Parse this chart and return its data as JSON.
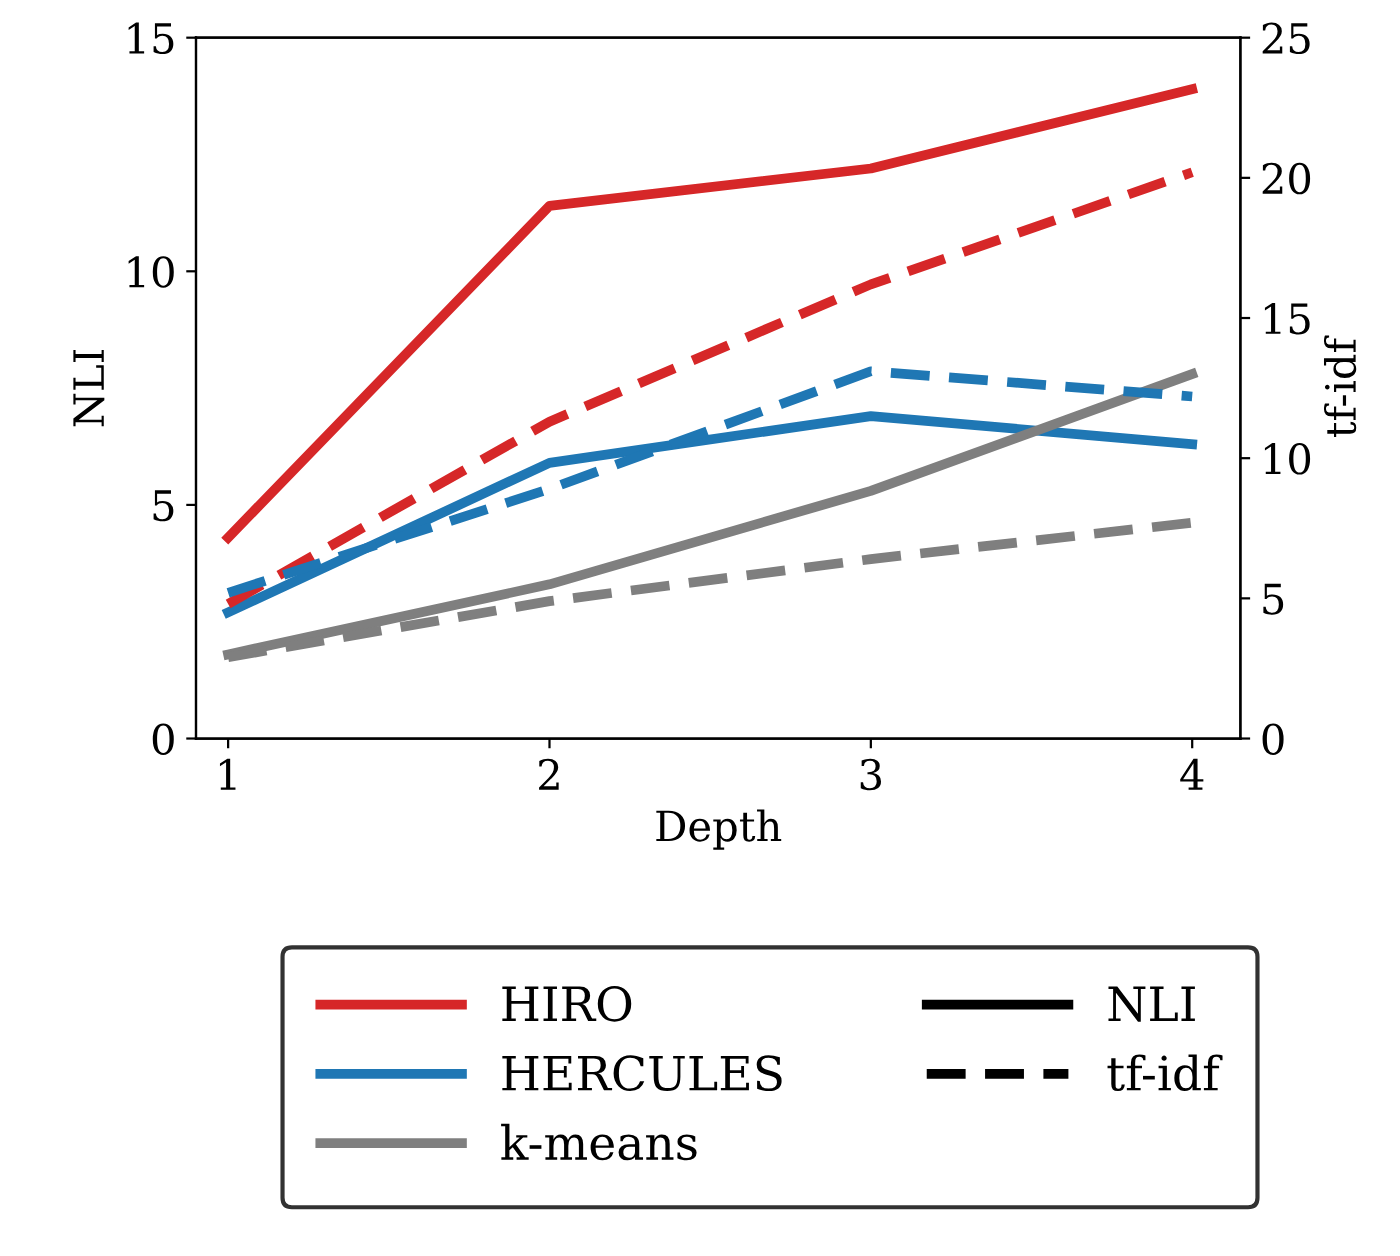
{
  "chart_data": {
    "type": "line",
    "xlabel": "Depth",
    "ylabel": "NLI",
    "y2label": "tf-idf",
    "x": [
      1,
      2,
      3,
      4
    ],
    "xlim": [
      0.9,
      4.15
    ],
    "xticks": [
      1,
      2,
      3,
      4
    ],
    "ylim": [
      0,
      15
    ],
    "yticks": [
      0,
      5,
      10,
      15
    ],
    "y2lim": [
      0,
      25
    ],
    "y2ticks": [
      0,
      5,
      10,
      15,
      20,
      25
    ],
    "grid": false,
    "legend": "bottom",
    "marker": "none",
    "series": [
      {
        "name": "HIRO",
        "color": "#d62728",
        "values": [
          4.3,
          11.4,
          12.2,
          13.9
        ],
        "line_style": "solid"
      },
      {
        "color": "#d62728",
        "values": [
          4.8,
          11.3,
          16.2,
          20.2
        ],
        "axis": "y2",
        "line_style": "dashed"
      },
      {
        "name": "HERCULES",
        "color": "#1f77b4",
        "values": [
          2.7,
          5.9,
          6.9,
          6.3
        ],
        "line_style": "solid"
      },
      {
        "color": "#1f77b4",
        "values": [
          5.2,
          8.9,
          13.1,
          12.2
        ],
        "axis": "y2",
        "line_style": "dashed"
      },
      {
        "name": "k-means",
        "color": "#7f7f7f",
        "values": [
          1.8,
          3.3,
          5.3,
          7.8
        ],
        "line_style": "solid"
      },
      {
        "color": "#7f7f7f",
        "values": [
          2.9,
          4.9,
          6.4,
          7.7
        ],
        "axis": "y2",
        "line_style": "dashed"
      }
    ]
  }
}
